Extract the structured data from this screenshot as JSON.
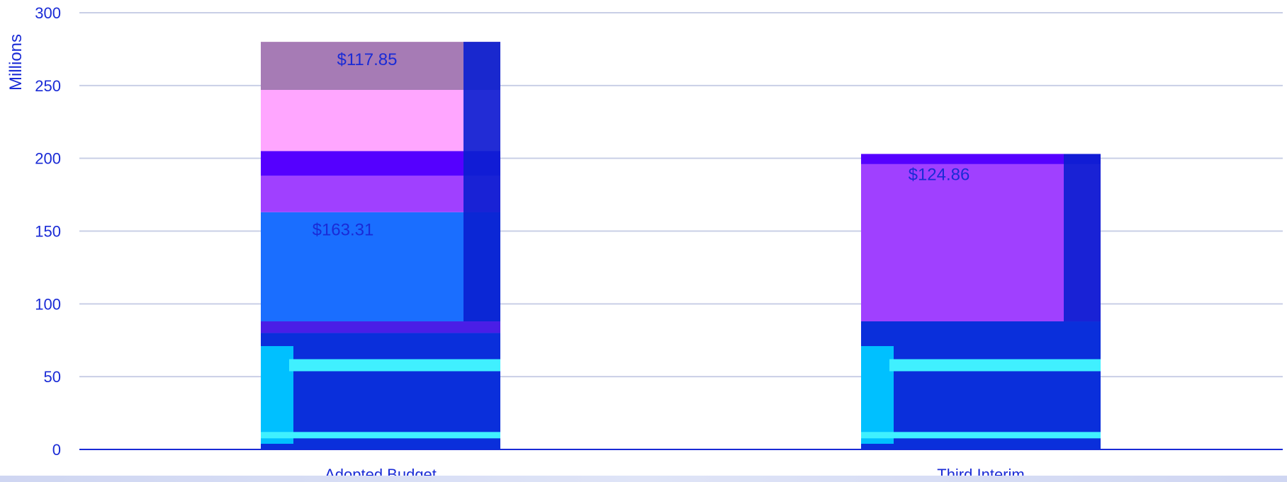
{
  "chart_data": {
    "type": "bar",
    "stacked": true,
    "ylabel": "Millions",
    "ylim": [
      0,
      300
    ],
    "yticks": [
      0,
      50,
      100,
      150,
      200,
      250,
      300
    ],
    "grid": true,
    "categories": [
      "Adopted Budget",
      "Third Interim"
    ],
    "series": [
      {
        "values": [
          80,
          88
        ],
        "color": "#0a2fdb"
      },
      {
        "values": [
          8,
          0
        ],
        "color": "#4a1ee6"
      },
      {
        "values": [
          75,
          0
        ],
        "color": "#1a6eff"
      },
      {
        "values": [
          25,
          108
        ],
        "color": "#a040ff"
      },
      {
        "values": [
          17,
          7
        ],
        "color": "#5500ff"
      },
      {
        "values": [
          42,
          0
        ],
        "color": "#ffa6ff"
      },
      {
        "values": [
          33,
          0
        ],
        "color": "#a67bb5"
      }
    ],
    "data_labels": [
      {
        "category": "Adopted Budget",
        "text": "$117.85"
      },
      {
        "category": "Adopted Budget",
        "text": "$163.31"
      },
      {
        "category": "Third Interim",
        "text": "$124.86"
      }
    ],
    "totals": [
      280,
      203
    ],
    "colors": {
      "axis_text": "#1a2bd6",
      "grid": "#c9cfe6",
      "accent_cyan": "#00c0ff",
      "accent_light_cyan": "#40f0ff",
      "dark_navy": "#0a0f8c"
    }
  }
}
